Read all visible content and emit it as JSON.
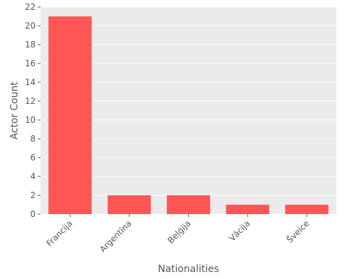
{
  "chart_data": {
    "type": "bar",
    "title": "",
    "xlabel": "Nationalities",
    "ylabel": "Actor Count",
    "categories": [
      "Francija",
      "Argentīna",
      "Beļģija",
      "Vācija",
      "Šveice"
    ],
    "values": [
      21,
      2,
      2,
      1,
      1
    ],
    "ylim": [
      0,
      22
    ],
    "yticks": [
      0,
      2,
      4,
      6,
      8,
      10,
      12,
      14,
      16,
      18,
      20,
      22
    ],
    "grid": true,
    "legend": "none",
    "colors": {
      "bar": "#ff5555",
      "plot_background": "#ebebeb",
      "grid": "#ffffff",
      "text": "#555555"
    }
  }
}
